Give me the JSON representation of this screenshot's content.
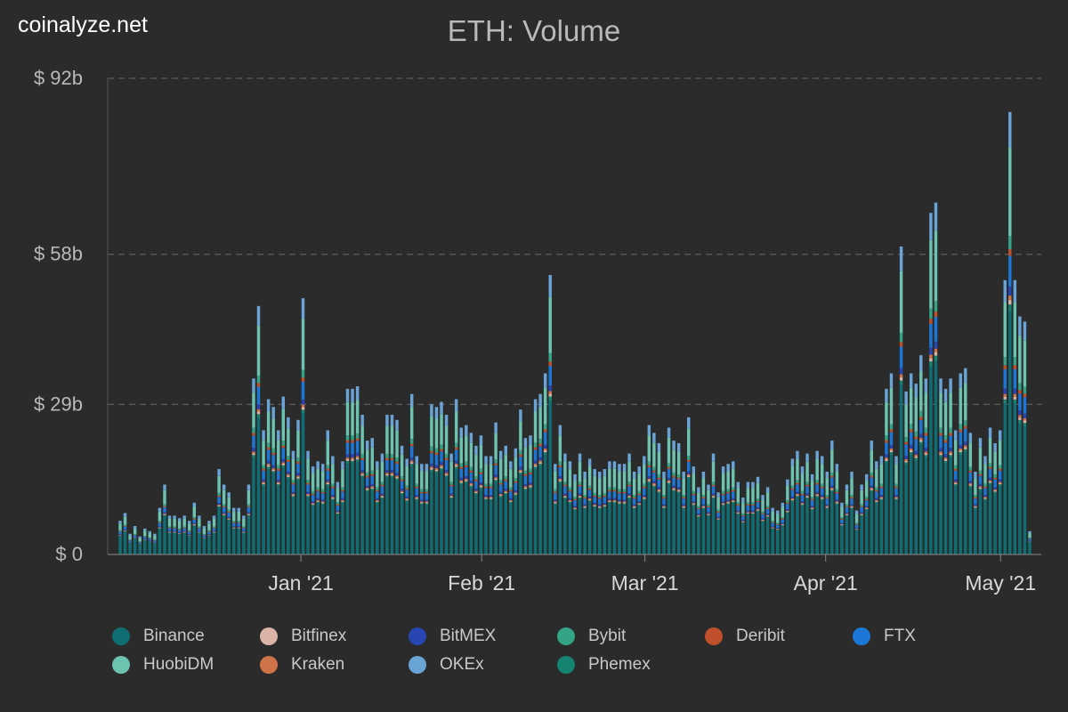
{
  "brand": "coinalyze.net",
  "chart_data": {
    "type": "bar",
    "stacked": true,
    "title": "ETH: Volume",
    "xlabel": "",
    "ylabel": "",
    "y_tick_labels": [
      "$ 0",
      "$ 29b",
      "$ 58b",
      "$ 92b"
    ],
    "y_ticks": [
      0,
      29,
      58,
      92
    ],
    "ylim": [
      0,
      92
    ],
    "x_tick_labels": [
      "Jan '21",
      "Feb '21",
      "Mar '21",
      "Apr '21",
      "May '21"
    ],
    "x_tick_dates": [
      "2021-01-01",
      "2021-02-01",
      "2021-03-01",
      "2021-04-01",
      "2021-05-01"
    ],
    "x_start": "2020-12-01",
    "x_end": "2021-05-06",
    "grid": true,
    "legend_position": "bottom",
    "totals": [
      6.5,
      8,
      4,
      5.5,
      3.5,
      5,
      4.5,
      4,
      9,
      13.5,
      7.5,
      7.5,
      7,
      7.5,
      6.5,
      10,
      7.5,
      5.5,
      6.5,
      7.5,
      16.5,
      13.5,
      12,
      9,
      9,
      7.5,
      13.5,
      34,
      48,
      24,
      30,
      28.5,
      24,
      30.5,
      26.5,
      20,
      26,
      49.5,
      20,
      17,
      18,
      17.5,
      24,
      19,
      14,
      18,
      32,
      32,
      32.5,
      27,
      22,
      22.5,
      18,
      19.5,
      27,
      27,
      26,
      21,
      18.5,
      31,
      19,
      17.5,
      17.5,
      29,
      28.5,
      29.5,
      27,
      19.5,
      30,
      24.5,
      25,
      23.5,
      21,
      23,
      19,
      19,
      25.5,
      20,
      21,
      18,
      20.5,
      28,
      22.5,
      23,
      30,
      31,
      35,
      54,
      17.5,
      25,
      19.5,
      18,
      15.5,
      19.5,
      16,
      18.5,
      16.5,
      16,
      16.5,
      18,
      18,
      17.5,
      17.5,
      19.5,
      16,
      17,
      19,
      25,
      23.5,
      21.5,
      16,
      24.5,
      22,
      21.5,
      16,
      26.5,
      17,
      13,
      16,
      13.5,
      19.5,
      12,
      17,
      17.5,
      18,
      14,
      11,
      14,
      14,
      15,
      11.5,
      13,
      9,
      8.5,
      10,
      14.5,
      18.5,
      20,
      17,
      19.5,
      15.5,
      20,
      19,
      16,
      22,
      17.5,
      10,
      13.5,
      16,
      8.5,
      13.5,
      15.5,
      22,
      18,
      19,
      32,
      35,
      19,
      59.5,
      31.5,
      35,
      33,
      38.5,
      34,
      66,
      68,
      34,
      32,
      34,
      24,
      35,
      36,
      23.5,
      16,
      22.5,
      19,
      24.5,
      21.5,
      24,
      53,
      85.5,
      53,
      46,
      45,
      4.5
    ],
    "series": [
      {
        "name": "Binance",
        "share": 0.55
      },
      {
        "name": "Bitfinex",
        "share": 0.01
      },
      {
        "name": "BitMEX",
        "share": 0.02
      },
      {
        "name": "Bybit",
        "share": 0.03
      },
      {
        "name": "Deribit",
        "share": 0.015
      },
      {
        "name": "FTX",
        "share": 0.07
      },
      {
        "name": "HuobiDM",
        "share": 0.2
      },
      {
        "name": "Kraken",
        "share": 0.01
      },
      {
        "name": "OKEx",
        "share": 0.08
      },
      {
        "name": "Phemex",
        "share": 0.015
      }
    ]
  },
  "legend": [
    {
      "name": "Binance",
      "color": "#0e6e74"
    },
    {
      "name": "Bitfinex",
      "color": "#dbb4a7"
    },
    {
      "name": "BitMEX",
      "color": "#2746b3"
    },
    {
      "name": "Bybit",
      "color": "#35a486"
    },
    {
      "name": "Deribit",
      "color": "#c04f2b"
    },
    {
      "name": "FTX",
      "color": "#1b78d8"
    },
    {
      "name": "HuobiDM",
      "color": "#6cc3b0"
    },
    {
      "name": "Kraken",
      "color": "#cf7448"
    },
    {
      "name": "OKEx",
      "color": "#6aa3d5"
    },
    {
      "name": "Phemex",
      "color": "#148370"
    }
  ]
}
